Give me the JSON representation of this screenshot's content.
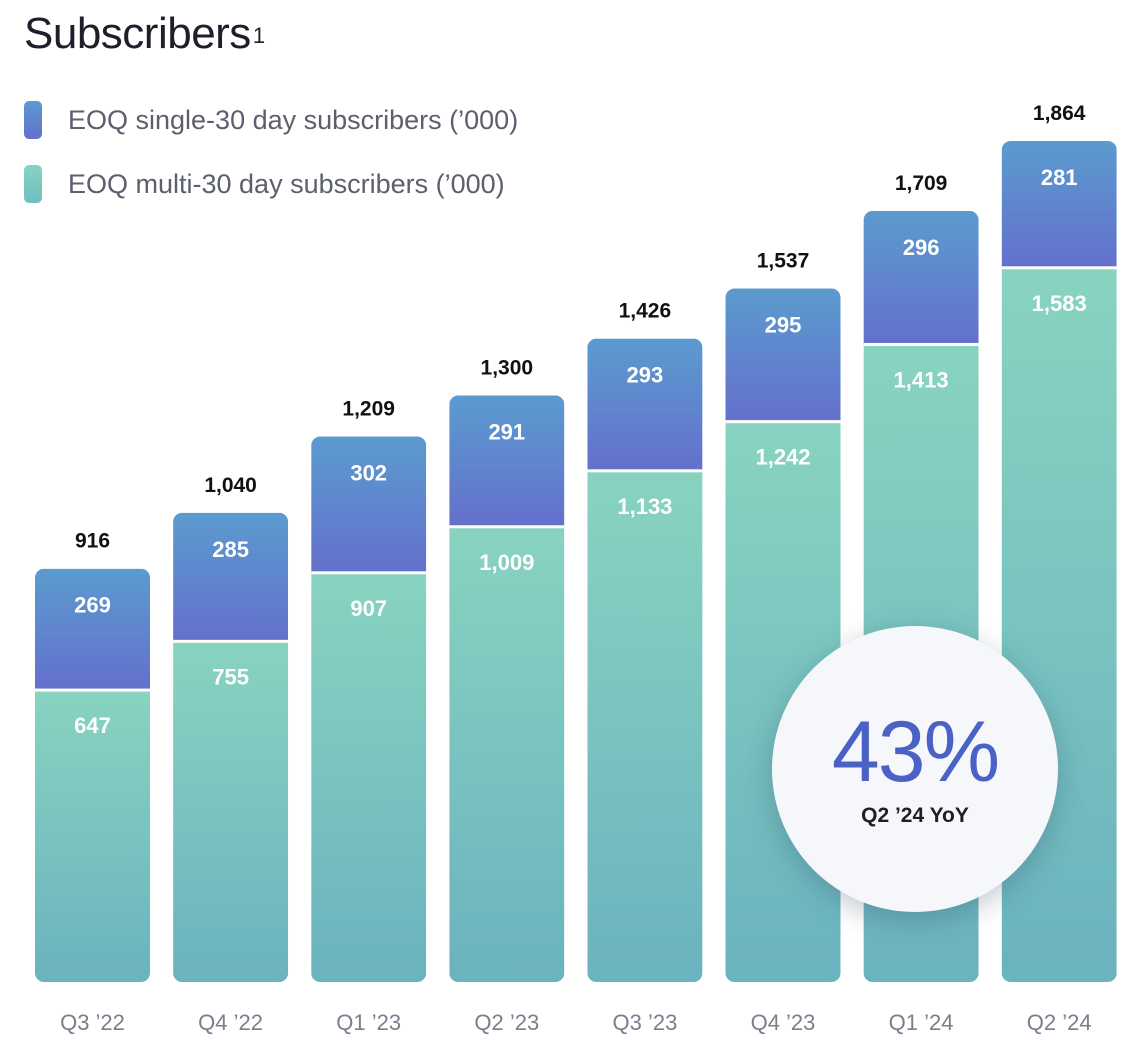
{
  "title": {
    "text": "Subscribers",
    "superscript": "1"
  },
  "legend": {
    "single": "EOQ single-30 day subscribers (’000)",
    "multi": "EOQ multi-30 day subscribers  (’000)"
  },
  "highlight": {
    "value": "43%",
    "label": "Q2 ’24 YoY",
    "color": "#4a62c6"
  },
  "colors": {
    "single_top": "#5b9bcf",
    "single_bottom": "#6470cc",
    "multi_top": "#88d3c0",
    "multi_bottom": "#6ab3bf",
    "total_label": "#111111",
    "axis_label": "#7b7e8c",
    "inner_label": "#ffffff"
  },
  "chart_data": {
    "type": "bar",
    "stacked": true,
    "title": "Subscribers",
    "xlabel": "",
    "ylabel": "",
    "categories": [
      "Q3 ’22",
      "Q4 ’22",
      "Q1 ’23",
      "Q2 ’23",
      "Q3 ’23",
      "Q4 ’23",
      "Q1 ’24",
      "Q2 ’24"
    ],
    "series": [
      {
        "name": "EOQ multi-30 day subscribers (’000)",
        "values": [
          647,
          755,
          907,
          1009,
          1133,
          1242,
          1413,
          1583
        ],
        "labels": [
          "647",
          "755",
          "907",
          "1,009",
          "1,133",
          "1,242",
          "1,413",
          "1,583"
        ]
      },
      {
        "name": "EOQ single-30 day subscribers (’000)",
        "values": [
          269,
          285,
          302,
          291,
          293,
          295,
          296,
          281
        ],
        "labels": [
          "269",
          "285",
          "302",
          "291",
          "293",
          "295",
          "296",
          "281"
        ]
      }
    ],
    "totals": [
      916,
      1040,
      1209,
      1300,
      1426,
      1537,
      1709,
      1864
    ],
    "total_labels": [
      "916",
      "1,040",
      "1,209",
      "1,300",
      "1,426",
      "1,537",
      "1,709",
      "1,864"
    ],
    "ylim": [
      0,
      1864
    ],
    "grid": false,
    "legend": "top-left"
  }
}
